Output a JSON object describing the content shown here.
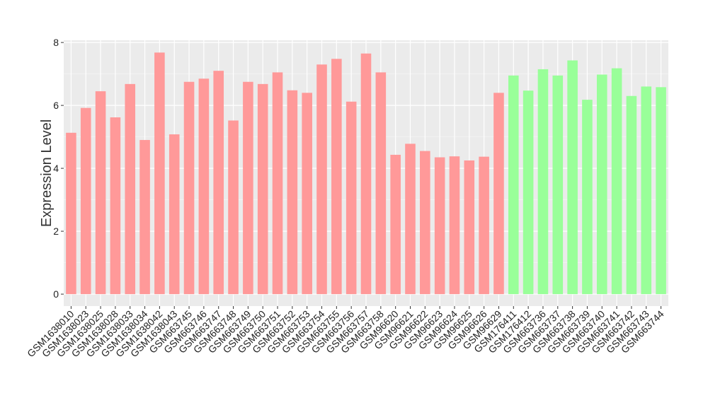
{
  "chart_data": {
    "type": "bar",
    "ylabel": "Expression Level",
    "categories": [
      "GSM1638010",
      "GSM1638023",
      "GSM1638025",
      "GSM1638028",
      "GSM1638033",
      "GSM1638034",
      "GSM1638042",
      "GSM1638043",
      "GSM663745",
      "GSM663746",
      "GSM663747",
      "GSM663748",
      "GSM663749",
      "GSM663750",
      "GSM663751",
      "GSM663752",
      "GSM663753",
      "GSM663754",
      "GSM663755",
      "GSM663756",
      "GSM663757",
      "GSM663758",
      "GSM96620",
      "GSM96621",
      "GSM96622",
      "GSM96623",
      "GSM96624",
      "GSM96625",
      "GSM96626",
      "GSM96629",
      "GSM176411",
      "GSM176412",
      "GSM663736",
      "GSM663737",
      "GSM663738",
      "GSM663739",
      "GSM663740",
      "GSM663741",
      "GSM663742",
      "GSM663743",
      "GSM663744"
    ],
    "values": [
      5.13,
      5.92,
      6.45,
      5.62,
      6.68,
      4.9,
      7.68,
      5.08,
      6.75,
      6.85,
      7.1,
      5.52,
      6.75,
      6.68,
      7.05,
      6.48,
      6.4,
      7.3,
      7.48,
      6.12,
      7.65,
      7.05,
      4.43,
      4.78,
      4.55,
      4.35,
      4.38,
      4.25,
      4.37,
      6.4,
      6.95,
      6.47,
      7.15,
      6.95,
      7.43,
      6.18,
      6.98,
      7.18,
      6.3,
      6.6,
      6.58
    ],
    "colors": [
      "#ff9999",
      "#ff9999",
      "#ff9999",
      "#ff9999",
      "#ff9999",
      "#ff9999",
      "#ff9999",
      "#ff9999",
      "#ff9999",
      "#ff9999",
      "#ff9999",
      "#ff9999",
      "#ff9999",
      "#ff9999",
      "#ff9999",
      "#ff9999",
      "#ff9999",
      "#ff9999",
      "#ff9999",
      "#ff9999",
      "#ff9999",
      "#ff9999",
      "#ff9999",
      "#ff9999",
      "#ff9999",
      "#ff9999",
      "#ff9999",
      "#ff9999",
      "#ff9999",
      "#ff9999",
      "#99ff99",
      "#99ff99",
      "#99ff99",
      "#99ff99",
      "#99ff99",
      "#99ff99",
      "#99ff99",
      "#99ff99",
      "#99ff99",
      "#99ff99",
      "#99ff99"
    ],
    "ylim": [
      -0.38,
      8.07
    ],
    "yticks": [
      0,
      2,
      4,
      6,
      8
    ],
    "grid": true
  }
}
